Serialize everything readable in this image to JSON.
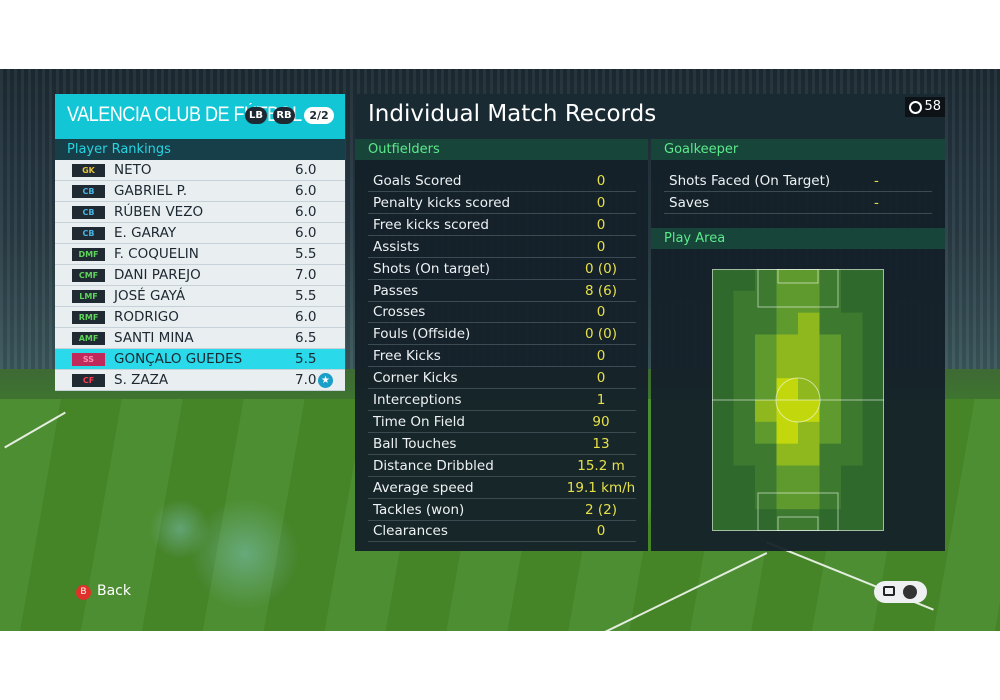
{
  "team": {
    "name": "VALENCIA CLUB DE FÚTBOL",
    "lb": "LB",
    "rb": "RB",
    "page": "2/2"
  },
  "rankings_label": "Player Rankings",
  "players": [
    {
      "pos": "GK",
      "pos_color": "#e6c43a",
      "name": "NETO",
      "rating": "6.0"
    },
    {
      "pos": "CB",
      "pos_color": "#47b6e6",
      "name": "GABRIEL P.",
      "rating": "6.0"
    },
    {
      "pos": "CB",
      "pos_color": "#47b6e6",
      "name": "RÚBEN VEZO",
      "rating": "6.0"
    },
    {
      "pos": "CB",
      "pos_color": "#47b6e6",
      "name": "E. GARAY",
      "rating": "6.0"
    },
    {
      "pos": "DMF",
      "pos_color": "#5fd45a",
      "name": "F. COQUELIN",
      "rating": "5.5"
    },
    {
      "pos": "CMF",
      "pos_color": "#5fd45a",
      "name": "DANI PAREJO",
      "rating": "7.0"
    },
    {
      "pos": "LMF",
      "pos_color": "#5fd45a",
      "name": "JOSÉ GAYÁ",
      "rating": "5.5"
    },
    {
      "pos": "RMF",
      "pos_color": "#5fd45a",
      "name": "RODRIGO",
      "rating": "6.0"
    },
    {
      "pos": "AMF",
      "pos_color": "#5fd45a",
      "name": "SANTI MINA",
      "rating": "6.5"
    },
    {
      "pos": "SS",
      "pos_color": "#ff3a55",
      "name": "GONÇALO GUEDES",
      "rating": "5.5"
    },
    {
      "pos": "CF",
      "pos_color": "#ff3a55",
      "name": "S. ZAZA",
      "rating": "7.0"
    }
  ],
  "title": "Individual Match Records",
  "timer": "58",
  "outfielders_label": "Outfielders",
  "stats": [
    {
      "label": "Goals Scored",
      "value": "0"
    },
    {
      "label": "Penalty kicks scored",
      "value": "0"
    },
    {
      "label": "Free kicks scored",
      "value": "0"
    },
    {
      "label": "Assists",
      "value": "0"
    },
    {
      "label": "Shots (On target)",
      "value": "0 (0)"
    },
    {
      "label": "Passes",
      "value": "8 (6)"
    },
    {
      "label": "Crosses",
      "value": "0"
    },
    {
      "label": "Fouls (Offside)",
      "value": "0 (0)"
    },
    {
      "label": "Free Kicks",
      "value": "0"
    },
    {
      "label": "Corner Kicks",
      "value": "0"
    },
    {
      "label": "Interceptions",
      "value": "1"
    },
    {
      "label": "Time On Field",
      "value": "90"
    },
    {
      "label": "Ball Touches",
      "value": "13"
    },
    {
      "label": "Distance Dribbled",
      "value": "15.2 m"
    },
    {
      "label": "Average speed",
      "value": "19.1 km/h"
    },
    {
      "label": "Tackles (won)",
      "value": "2 (2)"
    },
    {
      "label": "Clearances",
      "value": "0"
    }
  ],
  "goalkeeper_label": "Goalkeeper",
  "gk_stats": [
    {
      "label": "Shots Faced (On Target)",
      "value": "-"
    },
    {
      "label": "Saves",
      "value": "-"
    }
  ],
  "play_area_label": "Play Area",
  "heatmap": {
    "cols": 8,
    "rows": 12,
    "intensity": [
      [
        0,
        0,
        1,
        2,
        2,
        1,
        0,
        0
      ],
      [
        0,
        1,
        1,
        2,
        2,
        1,
        0,
        0
      ],
      [
        0,
        1,
        1,
        2,
        3,
        1,
        1,
        0
      ],
      [
        0,
        1,
        2,
        3,
        3,
        2,
        1,
        0
      ],
      [
        0,
        1,
        2,
        3,
        3,
        2,
        1,
        0
      ],
      [
        0,
        1,
        2,
        4,
        3,
        2,
        1,
        0
      ],
      [
        0,
        1,
        3,
        4,
        4,
        2,
        1,
        0
      ],
      [
        0,
        1,
        2,
        4,
        3,
        2,
        1,
        0
      ],
      [
        0,
        1,
        1,
        3,
        3,
        1,
        1,
        0
      ],
      [
        0,
        0,
        1,
        2,
        2,
        1,
        0,
        0
      ],
      [
        0,
        0,
        1,
        2,
        2,
        1,
        0,
        0
      ],
      [
        0,
        0,
        0,
        1,
        1,
        0,
        0,
        0
      ]
    ]
  },
  "back_label": "Back",
  "back_btn": "B",
  "star_icon": "★",
  "accent": "#12c6d6"
}
